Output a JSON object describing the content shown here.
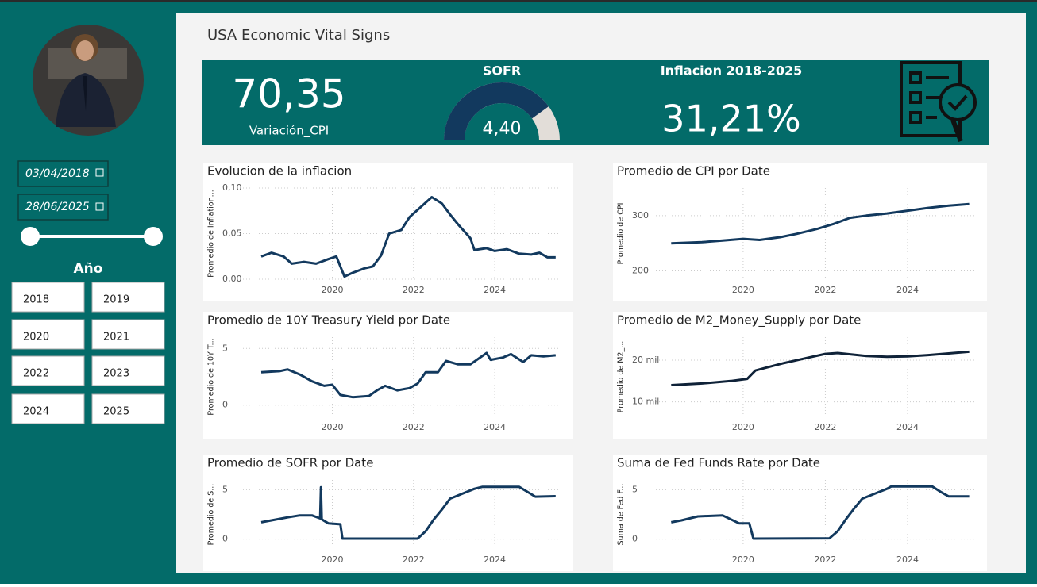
{
  "header": {
    "title": "USA Economic Vital Signs"
  },
  "kpis": {
    "cpi_change": {
      "value": "70,35",
      "label": "Variación_CPI"
    },
    "inflation": {
      "label": "Inflacion 2018-2025",
      "value": "31,21%"
    }
  },
  "filters": {
    "start_date": "03/04/2018",
    "end_date": "28/06/2025",
    "year_title": "Año",
    "years": [
      "2018",
      "2019",
      "2020",
      "2021",
      "2022",
      "2023",
      "2024",
      "2025"
    ]
  },
  "chart_data": [
    {
      "type": "gauge",
      "title": "SOFR",
      "value": 4.4,
      "value_label": "4,40",
      "ylim": [
        0,
        5.5
      ],
      "color": "#12395e",
      "track_color": "#e2ddd8"
    },
    {
      "type": "line",
      "title": "Evolucion de la inflacion",
      "y_label": "Promedio de Inflation...",
      "color": "#12395e",
      "grid": true,
      "x": [
        2018.25,
        2018.5,
        2018.8,
        2019.0,
        2019.3,
        2019.6,
        2019.9,
        2020.1,
        2020.3,
        2020.5,
        2020.8,
        2021.0,
        2021.2,
        2021.4,
        2021.7,
        2021.9,
        2022.2,
        2022.45,
        2022.7,
        2022.9,
        2023.1,
        2023.4,
        2023.5,
        2023.8,
        2024.0,
        2024.3,
        2024.6,
        2024.9,
        2025.1,
        2025.3,
        2025.5
      ],
      "values": [
        0.025,
        0.029,
        0.025,
        0.017,
        0.019,
        0.017,
        0.022,
        0.025,
        0.003,
        0.007,
        0.012,
        0.014,
        0.026,
        0.05,
        0.054,
        0.068,
        0.08,
        0.09,
        0.083,
        0.071,
        0.06,
        0.045,
        0.032,
        0.034,
        0.031,
        0.033,
        0.028,
        0.027,
        0.029,
        0.024,
        0.024
      ],
      "xlim": [
        2017.8,
        2025.7
      ],
      "xticks": [
        2020,
        2022,
        2024
      ],
      "ylim": [
        0,
        0.1
      ],
      "yticks": [
        {
          "value": 0,
          "label": "0,00"
        },
        {
          "value": 0.05,
          "label": "0,05"
        },
        {
          "value": 0.1,
          "label": "0,10"
        }
      ]
    },
    {
      "type": "line",
      "title": "Promedio de CPI por Date",
      "y_label": "Promedio de CPI",
      "color": "#12395e",
      "grid": true,
      "x": [
        2018.25,
        2019,
        2019.5,
        2020,
        2020.4,
        2020.9,
        2021.3,
        2021.8,
        2022.2,
        2022.6,
        2023,
        2023.5,
        2024,
        2024.5,
        2025,
        2025.5
      ],
      "values": [
        250,
        252,
        255,
        258,
        256,
        261,
        267,
        276,
        285,
        296,
        300,
        304,
        309,
        314,
        318,
        321
      ],
      "xlim": [
        2017.8,
        2025.7
      ],
      "xticks": [
        2020,
        2022,
        2024
      ],
      "ylim": [
        185,
        350
      ],
      "yticks": [
        200,
        300
      ]
    },
    {
      "type": "line",
      "title": "Promedio de 10Y Treasury Yield por Date",
      "y_label": "Promedio de 10Y T...",
      "color": "#12395e",
      "grid": true,
      "x": [
        2018.25,
        2018.7,
        2018.9,
        2019.2,
        2019.5,
        2019.8,
        2020.0,
        2020.2,
        2020.5,
        2020.9,
        2021.1,
        2021.3,
        2021.6,
        2021.9,
        2022.1,
        2022.3,
        2022.6,
        2022.8,
        2023.1,
        2023.4,
        2023.8,
        2023.9,
        2024.2,
        2024.4,
        2024.7,
        2024.9,
        2025.2,
        2025.5
      ],
      "values": [
        2.9,
        3.0,
        3.15,
        2.7,
        2.1,
        1.7,
        1.8,
        0.9,
        0.7,
        0.8,
        1.3,
        1.7,
        1.3,
        1.5,
        1.9,
        2.9,
        2.9,
        3.9,
        3.6,
        3.6,
        4.6,
        4.0,
        4.2,
        4.5,
        3.8,
        4.4,
        4.3,
        4.4
      ],
      "xlim": [
        2017.8,
        2025.7
      ],
      "xticks": [
        2020,
        2022,
        2024
      ],
      "ylim": [
        -1,
        6
      ],
      "yticks": [
        0,
        5
      ]
    },
    {
      "type": "line",
      "title": "Promedio de M2_Money_Supply por Date",
      "y_label": "Promedio de M2_...",
      "color": "#0f2238",
      "grid": true,
      "x": [
        2018.25,
        2019,
        2019.7,
        2020.1,
        2020.3,
        2020.6,
        2021,
        2021.5,
        2022,
        2022.3,
        2023,
        2023.5,
        2024,
        2024.5,
        2025,
        2025.5
      ],
      "values": [
        14000,
        14400,
        15000,
        15500,
        17500,
        18300,
        19300,
        20400,
        21500,
        21700,
        21000,
        20800,
        20900,
        21200,
        21600,
        22000
      ],
      "xlim": [
        2017.8,
        2025.7
      ],
      "xticks": [
        2020,
        2022,
        2024
      ],
      "ylim": [
        6500,
        25500
      ],
      "yticks": [
        {
          "value": 10000,
          "label": "10 mil"
        },
        {
          "value": 20000,
          "label": "20 mil"
        }
      ]
    },
    {
      "type": "line",
      "title": "Promedio de SOFR por Date",
      "y_label": "Promedio de S...",
      "color": "#12395e",
      "grid": true,
      "x": [
        2018.25,
        2018.5,
        2018.9,
        2019.2,
        2019.5,
        2019.7,
        2019.72,
        2019.74,
        2019.9,
        2020.2,
        2020.25,
        2021,
        2022.1,
        2022.3,
        2022.5,
        2022.7,
        2022.9,
        2023.2,
        2023.5,
        2023.7,
        2024.6,
        2024.8,
        2025,
        2025.5
      ],
      "values": [
        1.7,
        1.9,
        2.2,
        2.4,
        2.4,
        2.1,
        5.25,
        2.0,
        1.6,
        1.5,
        0.05,
        0.05,
        0.05,
        0.8,
        2.0,
        3.0,
        4.1,
        4.6,
        5.1,
        5.3,
        5.3,
        4.8,
        4.3,
        4.35
      ],
      "xlim": [
        2017.8,
        2025.7
      ],
      "xticks": [
        2020,
        2022,
        2024
      ],
      "ylim": [
        -1,
        6
      ],
      "yticks": [
        0,
        5
      ]
    },
    {
      "type": "line",
      "title": "Suma de Fed Funds Rate por Date",
      "y_label": "Suma de Fed F...",
      "color": "#12395e",
      "grid": true,
      "x": [
        2018.25,
        2018.5,
        2018.9,
        2019.5,
        2019.7,
        2019.9,
        2020.15,
        2020.25,
        2022.1,
        2022.3,
        2022.5,
        2022.7,
        2022.9,
        2023.2,
        2023.5,
        2023.6,
        2024.6,
        2024.8,
        2025,
        2025.5
      ],
      "values": [
        1.7,
        1.9,
        2.3,
        2.4,
        2.0,
        1.6,
        1.6,
        0.05,
        0.08,
        0.8,
        2.0,
        3.1,
        4.1,
        4.6,
        5.1,
        5.33,
        5.33,
        4.8,
        4.33,
        4.33
      ],
      "xlim": [
        2017.8,
        2025.7
      ],
      "xticks": [
        2020,
        2022,
        2024
      ],
      "ylim": [
        -1,
        6
      ],
      "yticks": [
        0,
        5
      ]
    }
  ]
}
